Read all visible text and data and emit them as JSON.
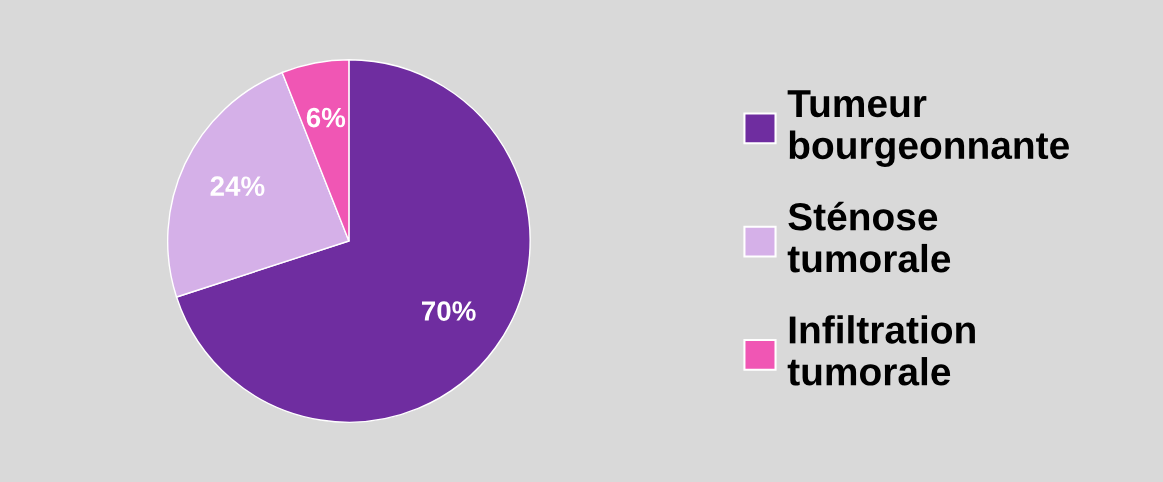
{
  "chart_data": {
    "type": "pie",
    "categories": [
      "Tumeur bourgeonnante",
      "Sténose tumorale",
      "Infiltration tumorale"
    ],
    "values": [
      70,
      24,
      6
    ],
    "colors": [
      "#6f2da0",
      "#d5b0e8",
      "#f056b4"
    ],
    "value_labels": [
      "70%",
      "24%",
      "6%"
    ],
    "legend": "right"
  }
}
